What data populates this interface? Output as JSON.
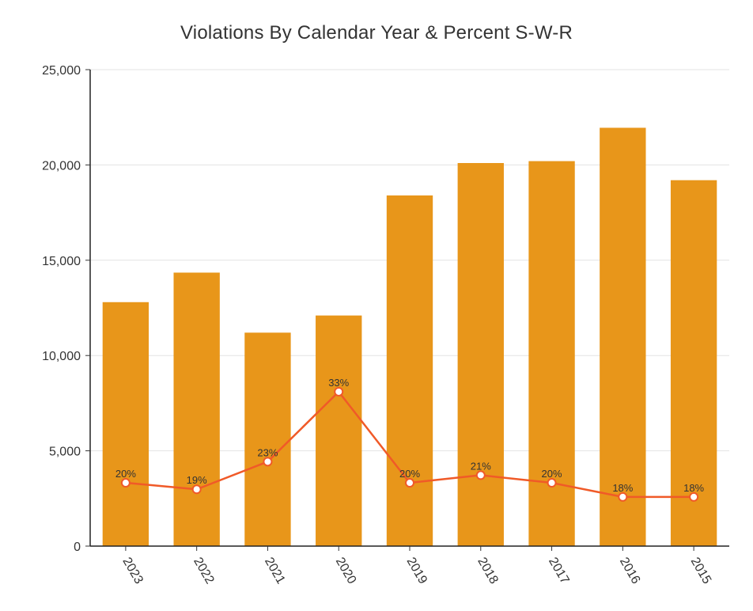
{
  "chart_data": {
    "type": "bar",
    "title": "Violations By Calendar Year & Percent S-W-R",
    "categories": [
      "2023",
      "2022",
      "2021",
      "2020",
      "2019",
      "2018",
      "2017",
      "2016",
      "2015"
    ],
    "series": [
      {
        "type": "bar",
        "values": [
          12800,
          14350,
          11200,
          12100,
          18400,
          20100,
          20200,
          21950,
          19200
        ],
        "color": "#E8961A"
      },
      {
        "type": "line",
        "values": [
          20,
          19,
          23,
          33,
          20,
          21,
          20,
          18,
          18
        ],
        "labels": [
          "20%",
          "19%",
          "23%",
          "33%",
          "20%",
          "21%",
          "20%",
          "18%",
          "18%"
        ],
        "plotted_at": [
          3320,
          2980,
          4430,
          8100,
          3320,
          3720,
          3320,
          2580,
          2580
        ],
        "color": "#F05A28"
      }
    ],
    "ylim": [
      0,
      25000
    ],
    "yticks": [
      0,
      5000,
      10000,
      15000,
      20000,
      25000
    ],
    "ytick_labels": [
      "0",
      "5,000",
      "10,000",
      "15,000",
      "20,000",
      "25,000"
    ],
    "grid": true,
    "xtick_rotation": 60
  }
}
